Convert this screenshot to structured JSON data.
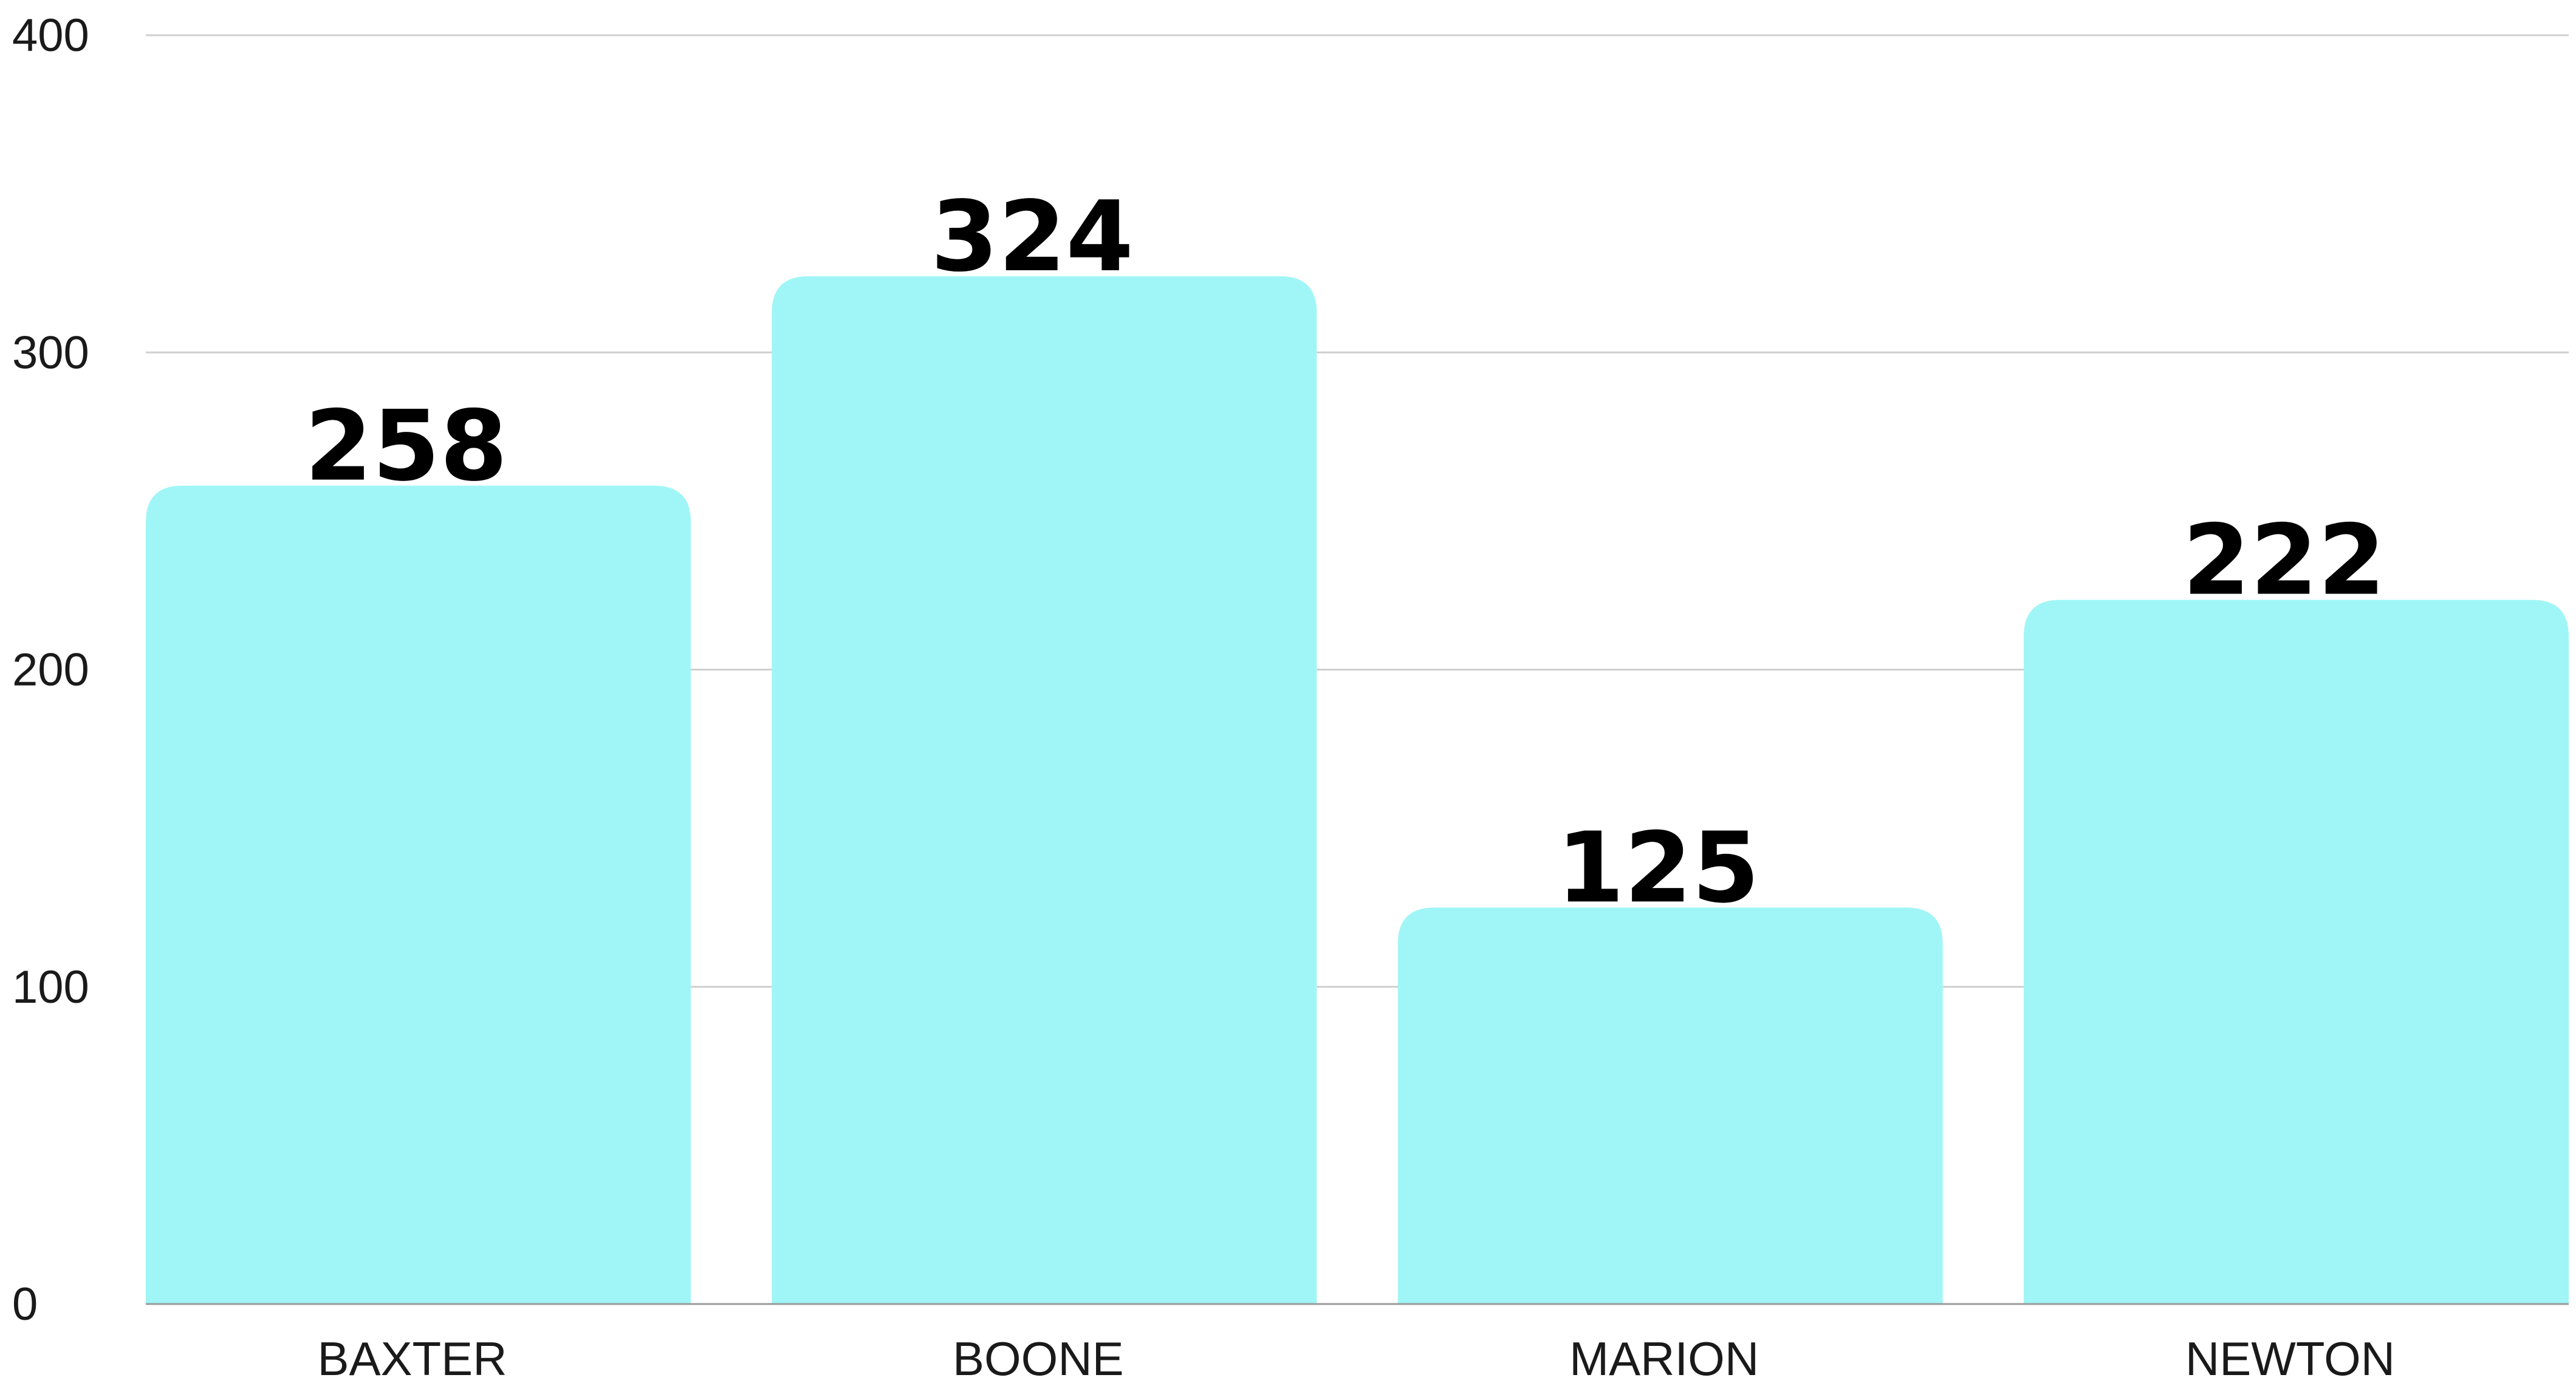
{
  "chart_data": {
    "type": "bar",
    "categories": [
      "BAXTER",
      "BOONE",
      "MARION",
      "NEWTON"
    ],
    "values": [
      258,
      324,
      125,
      222
    ],
    "title": "",
    "xlabel": "",
    "ylabel": "",
    "ylim": [
      0,
      400
    ],
    "yticks": [
      "0",
      "100",
      "200",
      "300",
      "400"
    ],
    "grid": true,
    "legend": "none",
    "data_labels": [
      "258",
      "324",
      "125",
      "222"
    ],
    "colors": {
      "bar": "#a0f6f6",
      "grid": "#cfcfcf",
      "axis": "#9a9a9a",
      "text": "#1a1a1a",
      "value_text": "#000000"
    }
  }
}
